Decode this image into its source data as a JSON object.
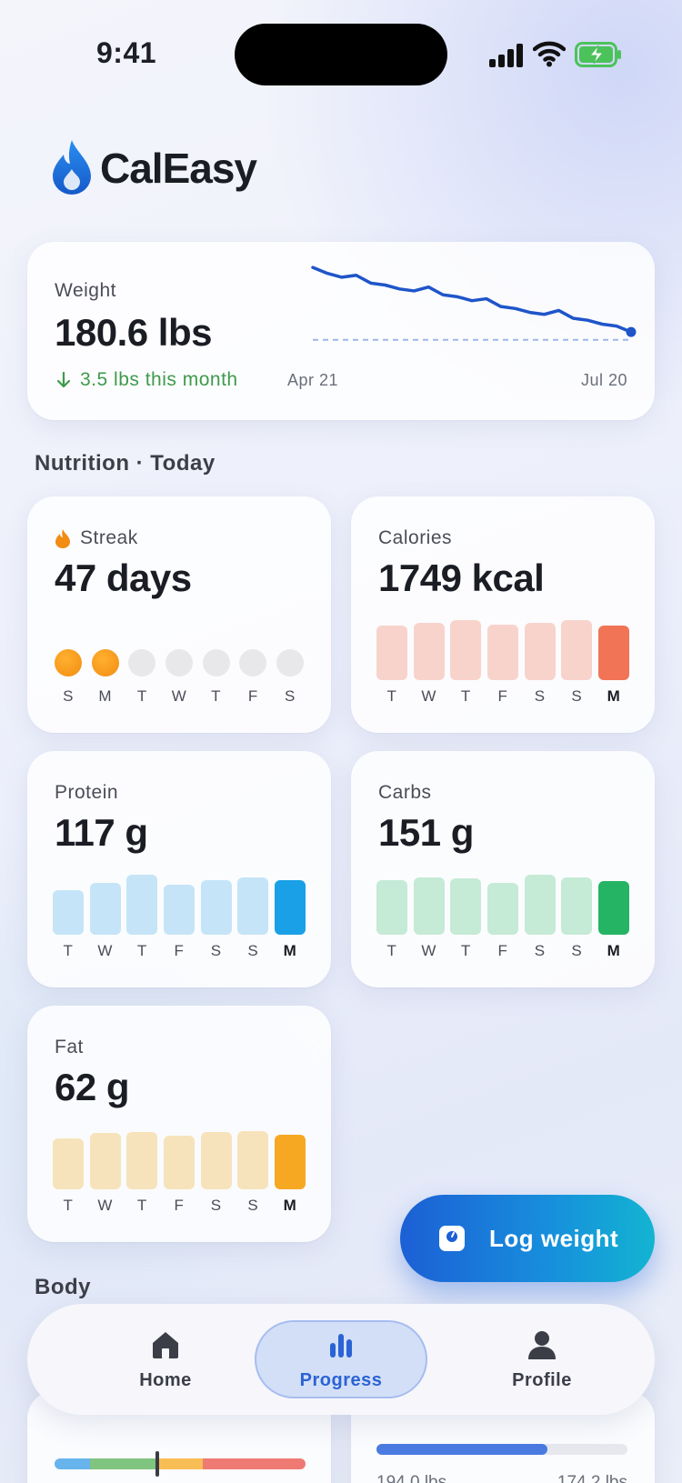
{
  "status_bar": {
    "time": "9:41"
  },
  "app": {
    "name": "CalEasy"
  },
  "weight": {
    "label": "Weight",
    "value": "180.6 lbs",
    "change": "3.5 lbs this month",
    "x_start": "Apr 21",
    "x_end": "Jul 20",
    "trend": [
      183.9,
      183.6,
      183.4,
      183.5,
      183.1,
      183.0,
      182.8,
      182.7,
      182.9,
      182.5,
      182.4,
      182.2,
      182.3,
      181.9,
      181.8,
      181.6,
      181.5,
      181.7,
      181.3,
      181.2,
      181.0,
      180.9,
      180.6
    ],
    "goal_level": 180.2,
    "color": "#1f55c9"
  },
  "nutrition": {
    "section_title": "Nutrition · Today",
    "streak": {
      "label": "Streak",
      "value": "47 days",
      "days": [
        "S",
        "M",
        "T",
        "W",
        "T",
        "F",
        "S"
      ],
      "completed": [
        true,
        true,
        false,
        false,
        false,
        false,
        false
      ],
      "accent": "#f28c13"
    },
    "calories": {
      "label": "Calories",
      "value": "1749 kcal",
      "days": [
        "T",
        "W",
        "T",
        "F",
        "S",
        "S",
        "M"
      ],
      "levels": [
        0.86,
        0.9,
        0.94,
        0.87,
        0.9,
        0.94,
        0.86
      ],
      "light": "#f8d3cc",
      "strong": "#f17456"
    },
    "protein": {
      "label": "Protein",
      "value": "117 g",
      "days": [
        "T",
        "W",
        "T",
        "F",
        "S",
        "S",
        "M"
      ],
      "levels": [
        0.7,
        0.82,
        0.94,
        0.78,
        0.86,
        0.9,
        0.86
      ],
      "light": "#c5e4f7",
      "strong": "#1aa0e6"
    },
    "carbs": {
      "label": "Carbs",
      "value": "151 g",
      "days": [
        "T",
        "W",
        "T",
        "F",
        "S",
        "S",
        "M"
      ],
      "levels": [
        0.86,
        0.9,
        0.88,
        0.82,
        0.94,
        0.9,
        0.84
      ],
      "light": "#c5ead6",
      "strong": "#25b463"
    },
    "fat": {
      "label": "Fat",
      "value": "62 g",
      "days": [
        "T",
        "W",
        "T",
        "F",
        "S",
        "S",
        "M"
      ],
      "levels": [
        0.8,
        0.88,
        0.9,
        0.84,
        0.9,
        0.92,
        0.86
      ],
      "light": "#f7e3bb",
      "strong": "#f6a823"
    }
  },
  "body": {
    "section_title": "Body",
    "goal_start": "194.0 lbs",
    "goal_end": "174.2 lbs",
    "goal_progress": 0.68,
    "bmi_marker": 0.41
  },
  "fab": {
    "label": "Log weight"
  },
  "tabs": [
    {
      "label": "Home",
      "icon": "home-icon"
    },
    {
      "label": "Progress",
      "icon": "bar-chart-icon",
      "selected": true
    },
    {
      "label": "Profile",
      "icon": "person-icon"
    }
  ]
}
